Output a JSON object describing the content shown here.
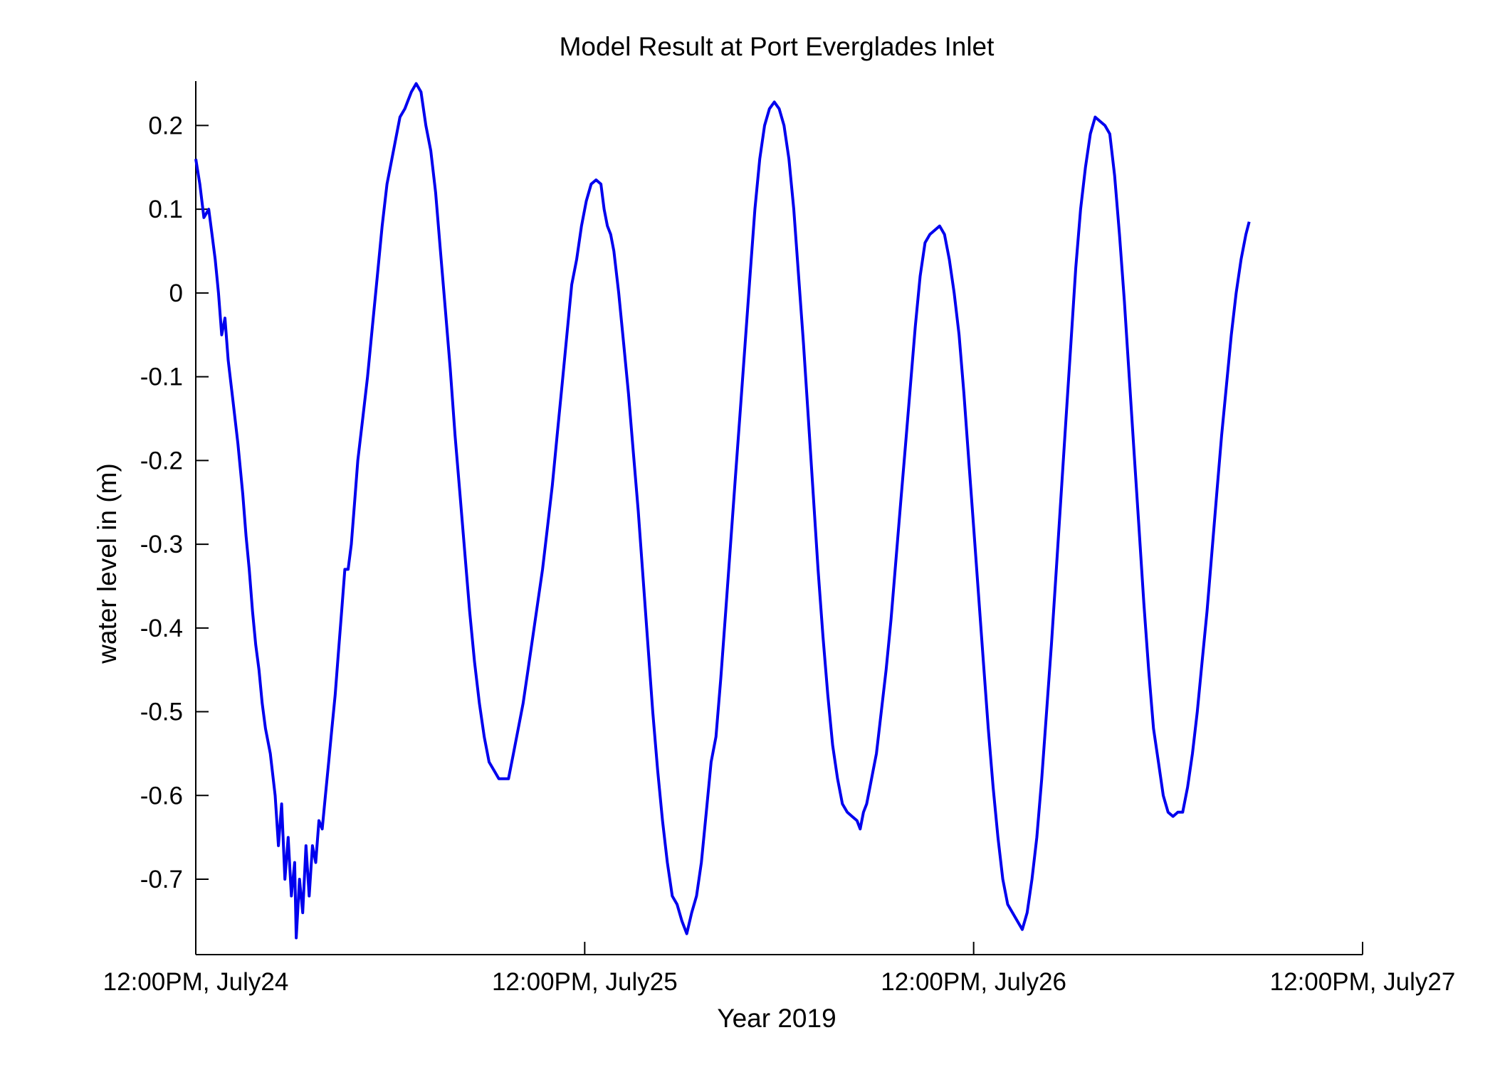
{
  "chart_data": {
    "type": "line",
    "title": "Model Result at Port Everglades Inlet",
    "xlabel": "Year 2019",
    "ylabel": "water level in (m)",
    "x_unit": "hours",
    "xlim": [
      0,
      72
    ],
    "ylim": [
      -0.79,
      0.253
    ],
    "x_ticks": [
      {
        "value": 0,
        "label": "12:00PM, July24"
      },
      {
        "value": 24,
        "label": "12:00PM, July25"
      },
      {
        "value": 48,
        "label": "12:00PM, July26"
      },
      {
        "value": 72,
        "label": "12:00PM, July27"
      }
    ],
    "y_ticks": [
      0.2,
      0.1,
      0,
      -0.1,
      -0.2,
      -0.3,
      -0.4,
      -0.5,
      -0.6,
      -0.7
    ],
    "y_tick_labels": [
      "0.2",
      "0.1",
      "0",
      "-0.1",
      "-0.2",
      "-0.3",
      "-0.4",
      "-0.5",
      "-0.6",
      "-0.7"
    ],
    "grid": false,
    "series": [
      {
        "color": "#0000ee",
        "points": [
          [
            0,
            0.16
          ],
          [
            0.25,
            0.13
          ],
          [
            0.5,
            0.09
          ],
          [
            0.8,
            0.1
          ],
          [
            1.0,
            0.07
          ],
          [
            1.2,
            0.04
          ],
          [
            1.4,
            0.0
          ],
          [
            1.6,
            -0.05
          ],
          [
            1.8,
            -0.03
          ],
          [
            2.0,
            -0.08
          ],
          [
            2.3,
            -0.13
          ],
          [
            2.6,
            -0.18
          ],
          [
            2.9,
            -0.24
          ],
          [
            3.1,
            -0.29
          ],
          [
            3.3,
            -0.33
          ],
          [
            3.5,
            -0.38
          ],
          [
            3.7,
            -0.42
          ],
          [
            3.9,
            -0.45
          ],
          [
            4.1,
            -0.49
          ],
          [
            4.3,
            -0.52
          ],
          [
            4.6,
            -0.55
          ],
          [
            4.9,
            -0.6
          ],
          [
            5.1,
            -0.66
          ],
          [
            5.3,
            -0.61
          ],
          [
            5.5,
            -0.7
          ],
          [
            5.7,
            -0.65
          ],
          [
            5.9,
            -0.72
          ],
          [
            6.1,
            -0.68
          ],
          [
            6.2,
            -0.77
          ],
          [
            6.4,
            -0.7
          ],
          [
            6.6,
            -0.74
          ],
          [
            6.8,
            -0.66
          ],
          [
            7.0,
            -0.72
          ],
          [
            7.2,
            -0.66
          ],
          [
            7.4,
            -0.68
          ],
          [
            7.6,
            -0.63
          ],
          [
            7.8,
            -0.64
          ],
          [
            8.0,
            -0.6
          ],
          [
            8.2,
            -0.56
          ],
          [
            8.4,
            -0.52
          ],
          [
            8.6,
            -0.48
          ],
          [
            8.8,
            -0.43
          ],
          [
            9.0,
            -0.38
          ],
          [
            9.2,
            -0.33
          ],
          [
            9.4,
            -0.33
          ],
          [
            9.6,
            -0.3
          ],
          [
            9.8,
            -0.25
          ],
          [
            10.0,
            -0.2
          ],
          [
            10.3,
            -0.15
          ],
          [
            10.6,
            -0.1
          ],
          [
            10.9,
            -0.04
          ],
          [
            11.2,
            0.02
          ],
          [
            11.5,
            0.08
          ],
          [
            11.8,
            0.13
          ],
          [
            12.0,
            0.15
          ],
          [
            12.3,
            0.18
          ],
          [
            12.6,
            0.21
          ],
          [
            12.9,
            0.22
          ],
          [
            13.1,
            0.23
          ],
          [
            13.3,
            0.24
          ],
          [
            13.6,
            0.25
          ],
          [
            13.9,
            0.24
          ],
          [
            14.2,
            0.2
          ],
          [
            14.5,
            0.17
          ],
          [
            14.8,
            0.12
          ],
          [
            15.1,
            0.05
          ],
          [
            15.4,
            -0.02
          ],
          [
            15.7,
            -0.09
          ],
          [
            16.0,
            -0.17
          ],
          [
            16.3,
            -0.24
          ],
          [
            16.6,
            -0.31
          ],
          [
            16.9,
            -0.38
          ],
          [
            17.2,
            -0.44
          ],
          [
            17.5,
            -0.49
          ],
          [
            17.8,
            -0.53
          ],
          [
            18.1,
            -0.56
          ],
          [
            18.4,
            -0.57
          ],
          [
            18.7,
            -0.58
          ],
          [
            19.0,
            -0.58
          ],
          [
            19.3,
            -0.58
          ],
          [
            19.6,
            -0.55
          ],
          [
            19.9,
            -0.52
          ],
          [
            20.2,
            -0.49
          ],
          [
            20.5,
            -0.45
          ],
          [
            20.8,
            -0.41
          ],
          [
            21.1,
            -0.37
          ],
          [
            21.4,
            -0.33
          ],
          [
            21.7,
            -0.28
          ],
          [
            22.0,
            -0.23
          ],
          [
            22.3,
            -0.17
          ],
          [
            22.6,
            -0.11
          ],
          [
            22.9,
            -0.05
          ],
          [
            23.2,
            0.01
          ],
          [
            23.5,
            0.04
          ],
          [
            23.8,
            0.08
          ],
          [
            24.1,
            0.11
          ],
          [
            24.4,
            0.13
          ],
          [
            24.7,
            0.135
          ],
          [
            25.0,
            0.13
          ],
          [
            25.2,
            0.1
          ],
          [
            25.4,
            0.08
          ],
          [
            25.6,
            0.07
          ],
          [
            25.8,
            0.05
          ],
          [
            26.1,
            0.0
          ],
          [
            26.4,
            -0.06
          ],
          [
            26.7,
            -0.12
          ],
          [
            27.0,
            -0.19
          ],
          [
            27.3,
            -0.26
          ],
          [
            27.6,
            -0.34
          ],
          [
            27.9,
            -0.42
          ],
          [
            28.2,
            -0.5
          ],
          [
            28.5,
            -0.57
          ],
          [
            28.8,
            -0.63
          ],
          [
            29.1,
            -0.68
          ],
          [
            29.4,
            -0.72
          ],
          [
            29.7,
            -0.73
          ],
          [
            30.0,
            -0.75
          ],
          [
            30.3,
            -0.765
          ],
          [
            30.6,
            -0.74
          ],
          [
            30.9,
            -0.72
          ],
          [
            31.2,
            -0.68
          ],
          [
            31.5,
            -0.62
          ],
          [
            31.8,
            -0.56
          ],
          [
            32.1,
            -0.53
          ],
          [
            32.4,
            -0.46
          ],
          [
            32.7,
            -0.38
          ],
          [
            33.0,
            -0.3
          ],
          [
            33.3,
            -0.22
          ],
          [
            33.6,
            -0.14
          ],
          [
            33.9,
            -0.06
          ],
          [
            34.2,
            0.02
          ],
          [
            34.5,
            0.1
          ],
          [
            34.8,
            0.16
          ],
          [
            35.1,
            0.2
          ],
          [
            35.4,
            0.22
          ],
          [
            35.7,
            0.228
          ],
          [
            36.0,
            0.22
          ],
          [
            36.3,
            0.2
          ],
          [
            36.6,
            0.16
          ],
          [
            36.9,
            0.1
          ],
          [
            37.2,
            0.02
          ],
          [
            37.5,
            -0.06
          ],
          [
            37.8,
            -0.15
          ],
          [
            38.1,
            -0.24
          ],
          [
            38.4,
            -0.33
          ],
          [
            38.7,
            -0.41
          ],
          [
            39.0,
            -0.48
          ],
          [
            39.3,
            -0.54
          ],
          [
            39.6,
            -0.58
          ],
          [
            39.9,
            -0.61
          ],
          [
            40.2,
            -0.62
          ],
          [
            40.5,
            -0.625
          ],
          [
            40.8,
            -0.63
          ],
          [
            41.0,
            -0.64
          ],
          [
            41.2,
            -0.62
          ],
          [
            41.4,
            -0.61
          ],
          [
            41.6,
            -0.59
          ],
          [
            41.8,
            -0.57
          ],
          [
            42.0,
            -0.55
          ],
          [
            42.3,
            -0.5
          ],
          [
            42.6,
            -0.45
          ],
          [
            42.9,
            -0.39
          ],
          [
            43.2,
            -0.32
          ],
          [
            43.5,
            -0.25
          ],
          [
            43.8,
            -0.18
          ],
          [
            44.1,
            -0.11
          ],
          [
            44.4,
            -0.04
          ],
          [
            44.7,
            0.02
          ],
          [
            45.0,
            0.06
          ],
          [
            45.3,
            0.07
          ],
          [
            45.6,
            0.075
          ],
          [
            45.9,
            0.08
          ],
          [
            46.2,
            0.07
          ],
          [
            46.5,
            0.04
          ],
          [
            46.8,
            0.0
          ],
          [
            47.1,
            -0.05
          ],
          [
            47.4,
            -0.12
          ],
          [
            47.7,
            -0.2
          ],
          [
            48.0,
            -0.28
          ],
          [
            48.3,
            -0.36
          ],
          [
            48.6,
            -0.44
          ],
          [
            48.9,
            -0.52
          ],
          [
            49.2,
            -0.59
          ],
          [
            49.5,
            -0.65
          ],
          [
            49.8,
            -0.7
          ],
          [
            50.1,
            -0.73
          ],
          [
            50.4,
            -0.74
          ],
          [
            50.7,
            -0.75
          ],
          [
            51.0,
            -0.76
          ],
          [
            51.3,
            -0.74
          ],
          [
            51.6,
            -0.7
          ],
          [
            51.9,
            -0.65
          ],
          [
            52.2,
            -0.58
          ],
          [
            52.5,
            -0.5
          ],
          [
            52.8,
            -0.42
          ],
          [
            53.1,
            -0.33
          ],
          [
            53.4,
            -0.24
          ],
          [
            53.7,
            -0.15
          ],
          [
            54.0,
            -0.06
          ],
          [
            54.3,
            0.03
          ],
          [
            54.6,
            0.1
          ],
          [
            54.9,
            0.15
          ],
          [
            55.2,
            0.19
          ],
          [
            55.5,
            0.21
          ],
          [
            55.8,
            0.205
          ],
          [
            56.1,
            0.2
          ],
          [
            56.4,
            0.19
          ],
          [
            56.7,
            0.14
          ],
          [
            57.0,
            0.07
          ],
          [
            57.3,
            -0.01
          ],
          [
            57.6,
            -0.1
          ],
          [
            57.9,
            -0.19
          ],
          [
            58.2,
            -0.28
          ],
          [
            58.5,
            -0.37
          ],
          [
            58.8,
            -0.45
          ],
          [
            59.1,
            -0.52
          ],
          [
            59.4,
            -0.56
          ],
          [
            59.7,
            -0.6
          ],
          [
            60.0,
            -0.62
          ],
          [
            60.3,
            -0.625
          ],
          [
            60.6,
            -0.62
          ],
          [
            60.9,
            -0.62
          ],
          [
            61.2,
            -0.59
          ],
          [
            61.5,
            -0.55
          ],
          [
            61.8,
            -0.5
          ],
          [
            62.1,
            -0.44
          ],
          [
            62.4,
            -0.38
          ],
          [
            62.7,
            -0.31
          ],
          [
            63.0,
            -0.24
          ],
          [
            63.3,
            -0.17
          ],
          [
            63.6,
            -0.11
          ],
          [
            63.9,
            -0.05
          ],
          [
            64.2,
            0.0
          ],
          [
            64.5,
            0.04
          ],
          [
            64.8,
            0.07
          ],
          [
            65.0,
            0.085
          ]
        ]
      }
    ]
  }
}
